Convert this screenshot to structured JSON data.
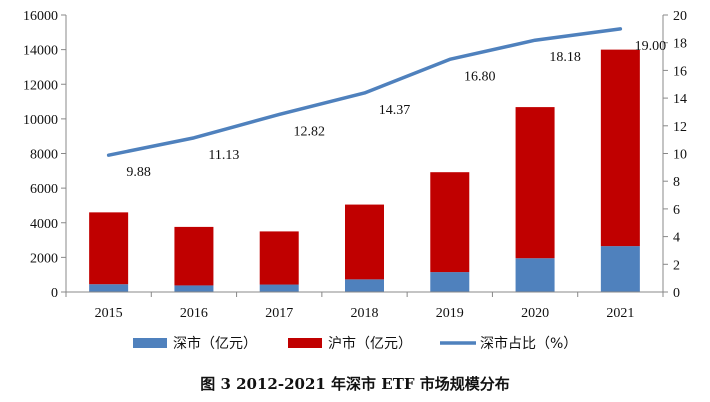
{
  "chart_data": {
    "type": "bar",
    "subtype": "stacked-bar-with-line",
    "title": "图 3   2012-2021 年深市 ETF 市场规模分布",
    "categories": [
      "2015",
      "2016",
      "2017",
      "2018",
      "2019",
      "2020",
      "2021"
    ],
    "series": [
      {
        "name": "深市（亿元）",
        "type": "bar",
        "axis": "left",
        "color": "#4f81bd",
        "values": [
          450,
          380,
          430,
          730,
          1150,
          1950,
          2650
        ]
      },
      {
        "name": "沪市（亿元）",
        "type": "bar",
        "axis": "left",
        "color": "#c00000",
        "values": [
          4150,
          3380,
          3070,
          4320,
          5770,
          8730,
          11350
        ]
      },
      {
        "name": "深市占比（%）",
        "type": "line",
        "axis": "right",
        "color": "#4f81bd",
        "values": [
          9.88,
          11.13,
          12.82,
          14.37,
          16.8,
          18.18,
          19.0
        ],
        "labels": [
          "9.88",
          "11.13",
          "12.82",
          "14.37",
          "16.80",
          "18.18",
          "19.00"
        ]
      }
    ],
    "left_axis": {
      "min": 0,
      "max": 16000,
      "step": 2000,
      "ticks": [
        "0",
        "2000",
        "4000",
        "6000",
        "8000",
        "10000",
        "12000",
        "14000",
        "16000"
      ]
    },
    "right_axis": {
      "min": 0,
      "max": 20,
      "step": 2,
      "ticks": [
        "0",
        "2",
        "4",
        "6",
        "8",
        "10",
        "12",
        "14",
        "16",
        "18",
        "20"
      ]
    },
    "grid": false,
    "legend_position": "bottom"
  }
}
